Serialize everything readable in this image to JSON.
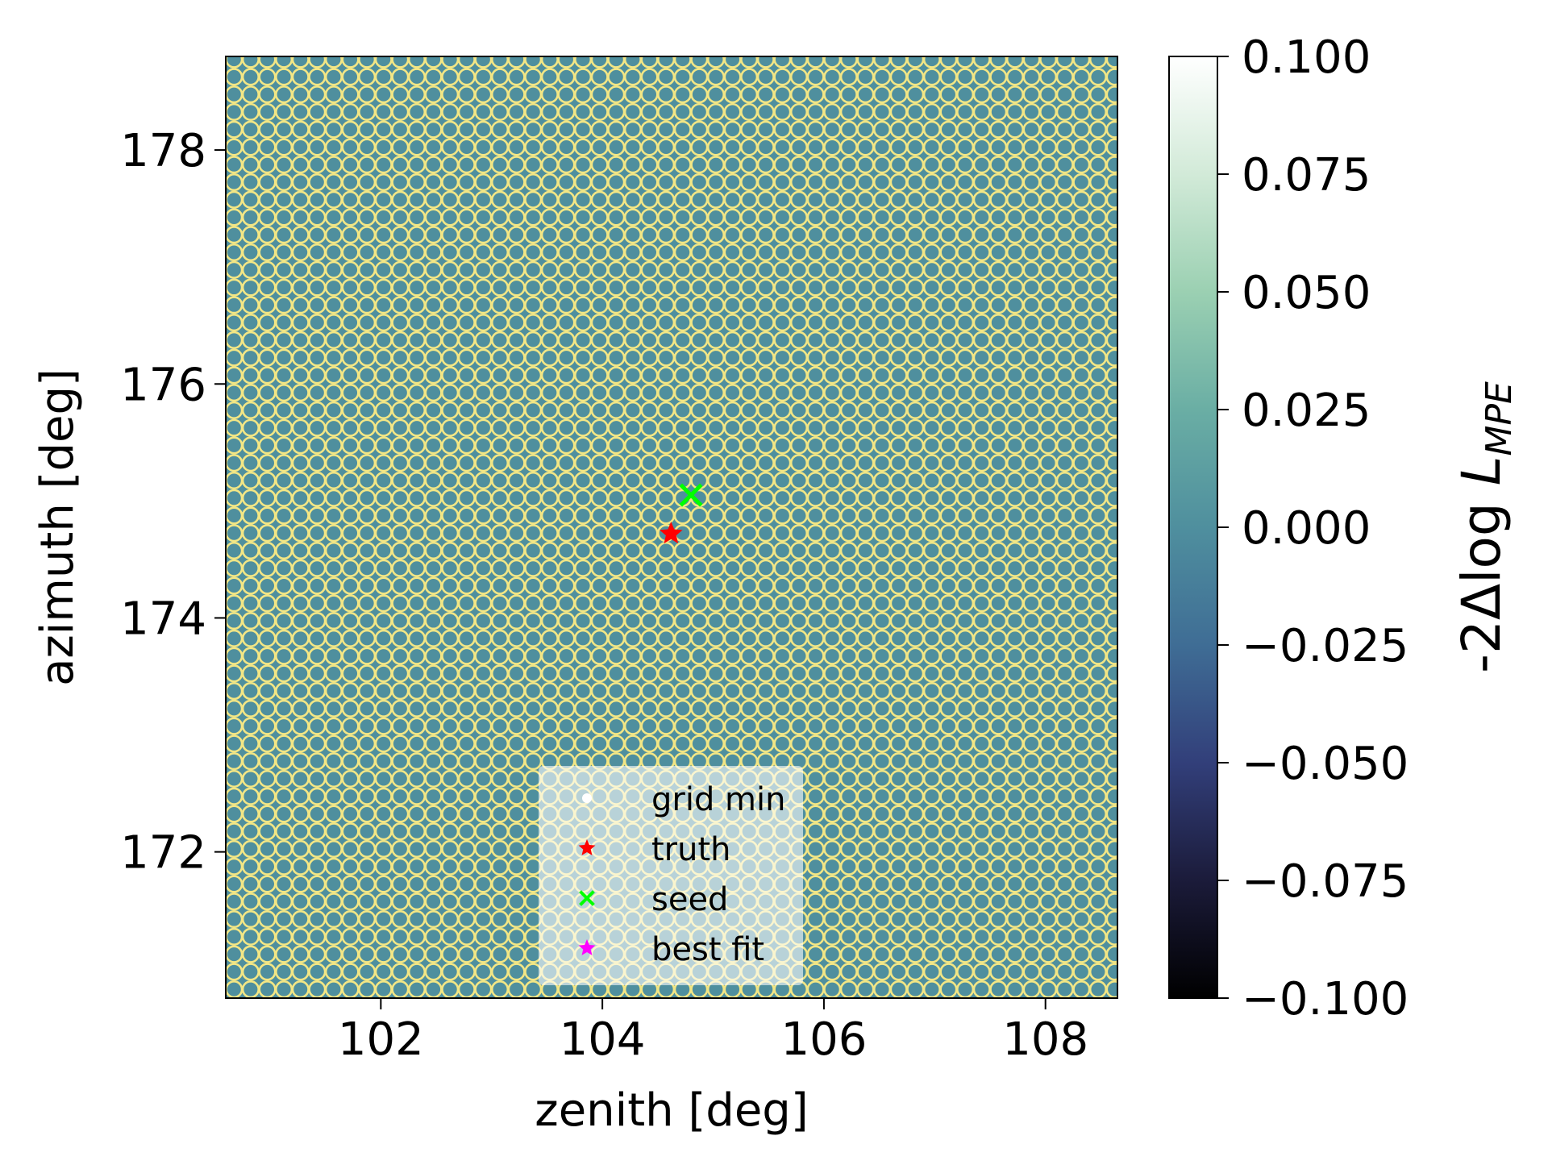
{
  "chart_data": {
    "type": "heatmap",
    "title": "",
    "xlabel": "zenith [deg]",
    "ylabel": "azimuth [deg]",
    "xlim": [
      100.6,
      108.65
    ],
    "ylim": [
      170.75,
      178.8
    ],
    "xticks": [
      102,
      104,
      106,
      108
    ],
    "yticks": [
      172,
      174,
      176,
      178
    ],
    "grid": false,
    "heatmap": {
      "value": 0.0,
      "cell_color": "#4f8f9e",
      "overlay_color": "#f2e685",
      "x_spacing": 0.15,
      "y_spacing": 0.15
    },
    "colorbar": {
      "label_main": "-2Δlog ",
      "label_italic": "L",
      "label_sub": "MPE",
      "min": -0.1,
      "max": 0.1,
      "ticks": [
        "−0.100",
        "−0.075",
        "−0.050",
        "−0.025",
        "0.000",
        "0.025",
        "0.050",
        "0.075",
        "0.100"
      ],
      "colormap": [
        "#000000",
        "#1b1b3a",
        "#323f7a",
        "#3f6d95",
        "#4f8f9e",
        "#6aaea4",
        "#9bd0b2",
        "#d2ead8",
        "#ffffff"
      ]
    },
    "markers": [
      {
        "name": "truth",
        "x": 104.62,
        "y": 174.72,
        "color": "#ff0000",
        "symbol": "star"
      },
      {
        "name": "seed",
        "x": 104.8,
        "y": 175.05,
        "color": "#00ff00",
        "symbol": "x"
      }
    ],
    "legend": {
      "placement": "lower-center",
      "entries": [
        {
          "label": "grid min",
          "color": "#ffffff",
          "symbol": "dot"
        },
        {
          "label": "truth",
          "color": "#ff0000",
          "symbol": "star"
        },
        {
          "label": "seed",
          "color": "#00ff00",
          "symbol": "x"
        },
        {
          "label": "best fit",
          "color": "#ff00ff",
          "symbol": "star"
        }
      ]
    }
  }
}
